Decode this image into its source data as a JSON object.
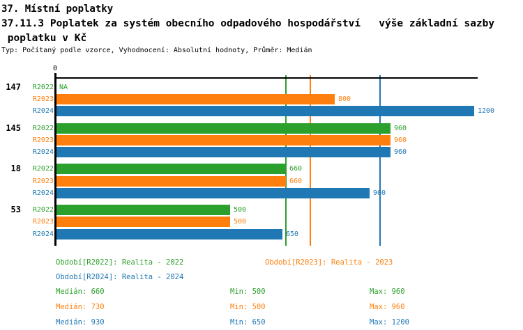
{
  "header": {
    "title_line1": "37. Místní poplatky",
    "title_line2": "37.11.3 Poplatek za systém obecního odpadového hospodářství   výše základní sazby",
    "title_line3": " poplatku v Kč",
    "meta_line": "Typ: Počítaný podle vzorce, Vyhodnocení: Absolutní hodnoty, Průměr: Medián"
  },
  "chart_data": {
    "type": "bar",
    "orientation": "horizontal",
    "value_axis": {
      "origin_label": "0",
      "min": 0,
      "max": 1210,
      "grid": false
    },
    "na_label": "NA",
    "categories": [
      "147",
      "145",
      "18",
      "53"
    ],
    "series": [
      {
        "name": "R2022",
        "color": "#2ca02c",
        "legend_label": "Období[R2022]: Realita - 2022",
        "median": 660,
        "min": 500,
        "max": 960
      },
      {
        "name": "R2023",
        "color": "#ff7f0e",
        "legend_label": "Období[R2023]: Realita - 2023",
        "median": 730,
        "min": 500,
        "max": 960
      },
      {
        "name": "R2024",
        "color": "#1f77b4",
        "legend_label": "Období[R2024]: Realita - 2024",
        "median": 930,
        "min": 650,
        "max": 1200
      }
    ],
    "groups": [
      {
        "category": "147",
        "values": [
          null,
          800,
          1200
        ]
      },
      {
        "category": "145",
        "values": [
          960,
          960,
          960
        ]
      },
      {
        "category": "18",
        "values": [
          660,
          660,
          900
        ]
      },
      {
        "category": "53",
        "values": [
          500,
          500,
          650
        ]
      }
    ],
    "median_lines_shown": true,
    "legend_position": "bottom",
    "stat_labels": {
      "median": "Medián",
      "min": "Min",
      "max": "Max"
    }
  }
}
